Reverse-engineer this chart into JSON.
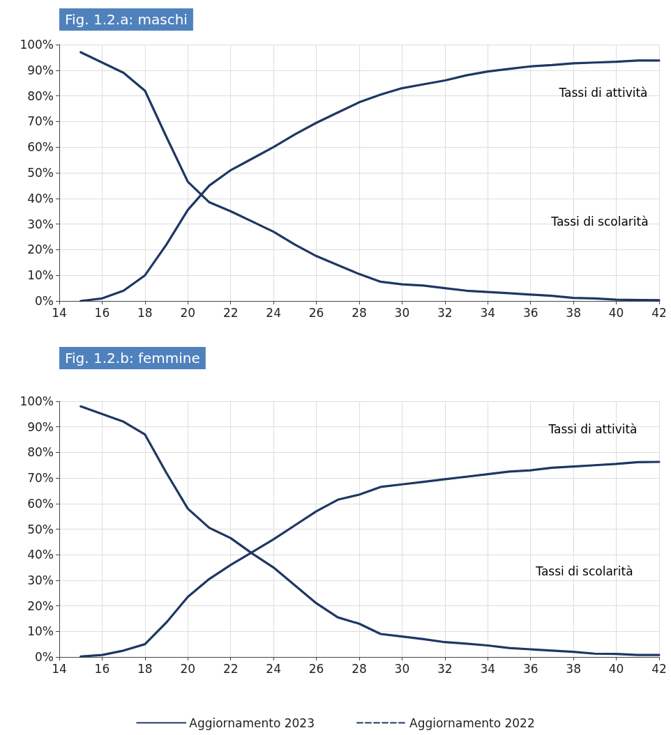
{
  "chart_data": [
    {
      "type": "line",
      "title": "Fig. 1.2.a: maschi",
      "x": [
        15,
        16,
        17,
        18,
        19,
        20,
        21,
        22,
        23,
        24,
        25,
        26,
        27,
        28,
        29,
        30,
        31,
        32,
        33,
        34,
        35,
        36,
        37,
        38,
        39,
        40,
        41,
        42
      ],
      "series": [
        {
          "color": "#1f3864",
          "line_style": "solid",
          "values": [
            0,
            1,
            4,
            10,
            22,
            35.5,
            45,
            51,
            55.5,
            60,
            65,
            69.5,
            73.5,
            77.5,
            80.5,
            83,
            84.5,
            86,
            88,
            89.5,
            90.5,
            91.5,
            92,
            92.7,
            93,
            93.3,
            93.8,
            93.8
          ]
        },
        {
          "color": "#1f3864",
          "line_style": "dashed",
          "values": [
            0,
            1,
            4,
            10,
            22,
            35.5,
            45,
            51,
            55.5,
            60,
            65,
            69.5,
            73.5,
            77.5,
            80.5,
            83,
            84.5,
            86,
            88,
            89.5,
            90.5,
            91.5,
            92,
            92.7,
            93,
            93.3,
            93.8,
            93.8
          ]
        },
        {
          "color": "#1f3864",
          "line_style": "solid",
          "values": [
            97,
            93,
            89,
            82,
            64,
            46.5,
            38.5,
            35,
            31,
            27,
            22,
            17.5,
            14,
            10.5,
            7.5,
            6.5,
            6,
            5,
            4,
            3.5,
            3,
            2.5,
            2,
            1.2,
            1,
            0.5,
            0.4,
            0.3
          ]
        },
        {
          "color": "#1f3864",
          "line_style": "dashed",
          "values": [
            97,
            93,
            89,
            82,
            64,
            46.5,
            38.5,
            35,
            31,
            27,
            22,
            17.5,
            14,
            10.5,
            7.5,
            6.5,
            6,
            5,
            4,
            3.5,
            3,
            2.5,
            2,
            1.2,
            1,
            0.5,
            0.4,
            0.3
          ]
        }
      ],
      "xlim": [
        14,
        42
      ],
      "xticks": [
        14,
        16,
        18,
        20,
        22,
        24,
        26,
        28,
        30,
        32,
        34,
        36,
        38,
        40,
        42
      ],
      "ylim": [
        0,
        100
      ],
      "yticks": [
        {
          "value": 0,
          "label": "0%"
        },
        {
          "value": 10,
          "label": "10%"
        },
        {
          "value": 20,
          "label": "20%"
        },
        {
          "value": 30,
          "label": "30%"
        },
        {
          "value": 40,
          "label": "40%"
        },
        {
          "value": 50,
          "label": "50%"
        },
        {
          "value": 60,
          "label": "60%"
        },
        {
          "value": 70,
          "label": "70%"
        },
        {
          "value": 80,
          "label": "80%"
        },
        {
          "value": 90,
          "label": "90%"
        },
        {
          "value": 100,
          "label": "100%"
        }
      ],
      "grid": true,
      "marker": "none",
      "legend": false,
      "annotations": [
        "Tassi di attività",
        "Tassi di scolarità"
      ]
    },
    {
      "type": "line",
      "title": "Fig. 1.2.b: femmine",
      "x": [
        15,
        16,
        17,
        18,
        19,
        20,
        21,
        22,
        23,
        24,
        25,
        26,
        27,
        28,
        29,
        30,
        31,
        32,
        33,
        34,
        35,
        36,
        37,
        38,
        39,
        40,
        41,
        42
      ],
      "series": [
        {
          "name": "Aggiornamento 2023",
          "color": "#1f3864",
          "line_style": "solid",
          "values": [
            0.2,
            0.8,
            2.5,
            5,
            13.5,
            23.5,
            30.5,
            36,
            41,
            46,
            51.5,
            57,
            61.5,
            63.5,
            66.5,
            67.5,
            68.5,
            69.5,
            70.5,
            71.5,
            72.5,
            73,
            74,
            74.5,
            75,
            75.5,
            76.2,
            76.3
          ]
        },
        {
          "name": "Aggiornamento 2022",
          "color": "#1f3864",
          "line_style": "dashed",
          "values": [
            0.2,
            0.8,
            2.5,
            5,
            13.5,
            23.5,
            30.5,
            36,
            41,
            46,
            51.5,
            57,
            61.5,
            63.5,
            66.5,
            67.5,
            68.5,
            69.5,
            70.5,
            71.5,
            72.5,
            73,
            74,
            74.5,
            75,
            75.5,
            76.2,
            76.3
          ]
        },
        {
          "color": "#1f3864",
          "line_style": "solid",
          "values": [
            98,
            95,
            92,
            87,
            72,
            58,
            50.5,
            46.5,
            40.5,
            35,
            28,
            21,
            15.5,
            13,
            9,
            8,
            7,
            5.8,
            5.2,
            4.5,
            3.5,
            3,
            2.5,
            2,
            1.3,
            1.2,
            0.8,
            0.8
          ]
        },
        {
          "color": "#1f3864",
          "line_style": "dashed",
          "values": [
            98,
            95,
            92,
            87,
            72,
            58,
            50.5,
            46.5,
            40.5,
            35,
            28,
            21,
            15.5,
            13,
            9,
            8,
            7,
            5.8,
            5.2,
            4.5,
            3.5,
            3,
            2.5,
            2,
            1.3,
            1.2,
            0.8,
            0.8
          ]
        }
      ],
      "xlim": [
        14,
        42
      ],
      "xticks": [
        14,
        16,
        18,
        20,
        22,
        24,
        26,
        28,
        30,
        32,
        34,
        36,
        38,
        40,
        42
      ],
      "ylim": [
        0,
        100
      ],
      "yticks": [
        {
          "value": 0,
          "label": "0%"
        },
        {
          "value": 10,
          "label": "10%"
        },
        {
          "value": 20,
          "label": "20%"
        },
        {
          "value": 30,
          "label": "30%"
        },
        {
          "value": 40,
          "label": "40%"
        },
        {
          "value": 50,
          "label": "50%"
        },
        {
          "value": 60,
          "label": "60%"
        },
        {
          "value": 70,
          "label": "70%"
        },
        {
          "value": 80,
          "label": "80%"
        },
        {
          "value": 90,
          "label": "90%"
        },
        {
          "value": 100,
          "label": "100%"
        }
      ],
      "grid": true,
      "marker": "none",
      "legend": "bottom",
      "annotations": [
        "Tassi di attività",
        "Tassi di scolarità"
      ]
    }
  ]
}
